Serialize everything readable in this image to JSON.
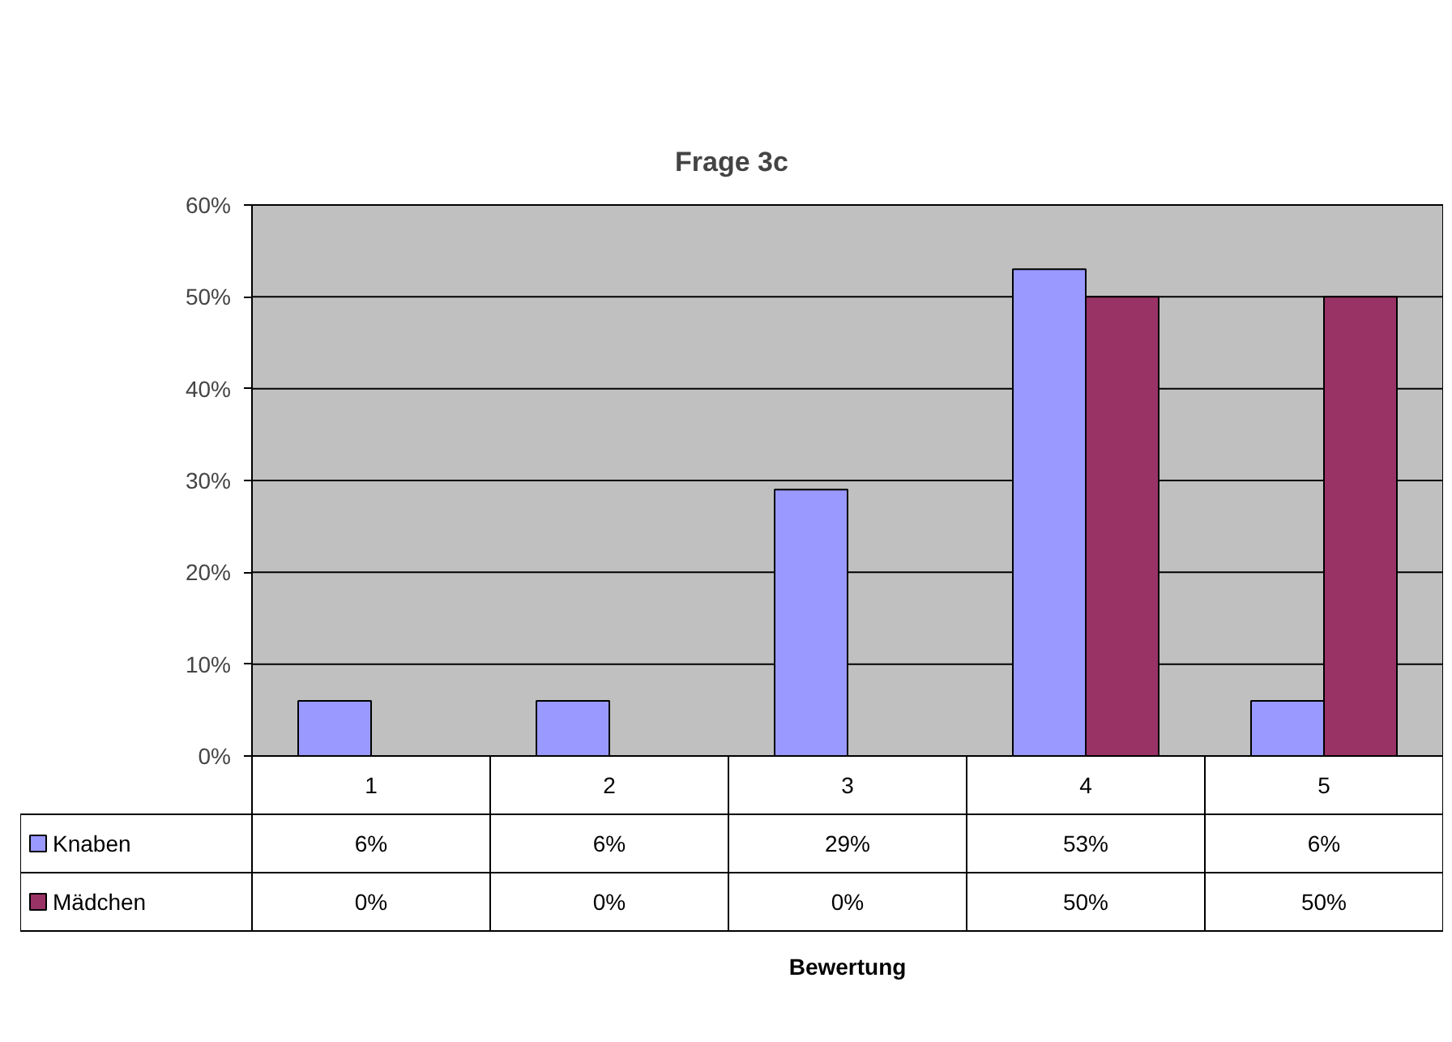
{
  "chart_data": {
    "type": "bar",
    "title": "Frage 3c",
    "annotations": [
      "Bewertung"
    ],
    "categories": [
      "1",
      "2",
      "3",
      "4",
      "5"
    ],
    "series": [
      {
        "name": "Knaben",
        "color": "#9999ff",
        "values": [
          6,
          6,
          29,
          53,
          6
        ],
        "value_labels": [
          "6%",
          "6%",
          "29%",
          "53%",
          "6%"
        ]
      },
      {
        "name": "Mädchen",
        "color": "#993366",
        "values": [
          0,
          0,
          0,
          50,
          50
        ],
        "value_labels": [
          "0%",
          "0%",
          "0%",
          "50%",
          "50%"
        ]
      }
    ],
    "ylim": [
      0,
      60
    ],
    "yticks": [
      {
        "value": 0,
        "label": "0%"
      },
      {
        "value": 10,
        "label": "10%"
      },
      {
        "value": 20,
        "label": "20%"
      },
      {
        "value": 30,
        "label": "30%"
      },
      {
        "value": 40,
        "label": "40%"
      },
      {
        "value": 50,
        "label": "50%"
      },
      {
        "value": 60,
        "label": "60%"
      }
    ],
    "grid": "y",
    "legend": "bottom"
  }
}
